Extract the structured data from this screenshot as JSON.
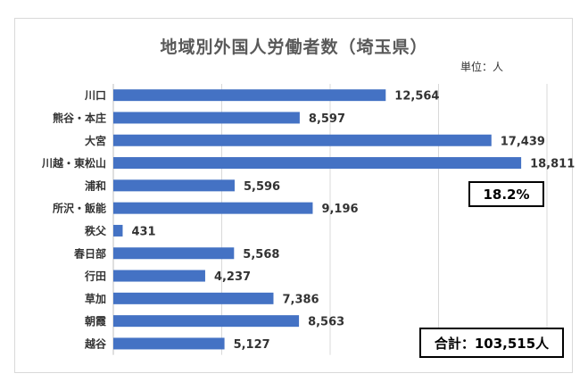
{
  "chart_data": {
    "type": "bar",
    "orientation": "horizontal",
    "title": "地域別外国人労働者数（埼玉県）",
    "unit_label": "単位：人",
    "categories": [
      "川口",
      "熊谷・本庄",
      "大宮",
      "川越・東松山",
      "浦和",
      "所沢・飯能",
      "秩父",
      "春日部",
      "行田",
      "草加",
      "朝霞",
      "越谷"
    ],
    "values": [
      12564,
      8597,
      17439,
      18811,
      5596,
      9196,
      431,
      5568,
      4237,
      7386,
      8563,
      5127
    ],
    "value_labels": [
      "12,564",
      "8,597",
      "17,439",
      "18,811",
      "5,596",
      "9,196",
      "431",
      "5,568",
      "4,237",
      "7,386",
      "8,563",
      "5,127"
    ],
    "xlim": [
      0,
      20000
    ],
    "grid": true,
    "bar_color": "#4472c4",
    "annotations": {
      "share": "18.2%",
      "total": "合計：103,515人"
    }
  }
}
